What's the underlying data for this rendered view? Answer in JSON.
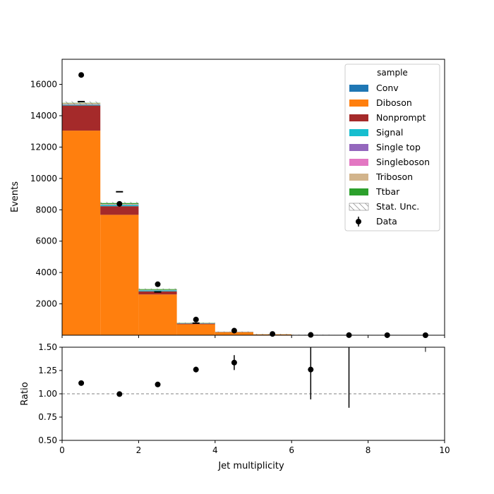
{
  "chart_data": {
    "type": "bar",
    "stacked": true,
    "x_bins": [
      0,
      1,
      2,
      3,
      4,
      5,
      6,
      7,
      8,
      9,
      10
    ],
    "series": [
      {
        "name": "Conv",
        "color": "#1f77b4",
        "values": [
          0,
          0,
          0,
          0,
          0,
          0,
          0,
          0,
          0,
          0
        ]
      },
      {
        "name": "Diboson",
        "color": "#ff7f0e",
        "values": [
          13050,
          7680,
          2600,
          700,
          190,
          55,
          15,
          3,
          1,
          0
        ]
      },
      {
        "name": "Nonprompt",
        "color": "#a52a2a",
        "values": [
          1600,
          550,
          200,
          40,
          12,
          3,
          1,
          0,
          0,
          0
        ]
      },
      {
        "name": "Signal",
        "color": "#17becf",
        "values": [
          50,
          80,
          60,
          20,
          6,
          2,
          0,
          0,
          0,
          0
        ]
      },
      {
        "name": "Single top",
        "color": "#9467bd",
        "values": [
          10,
          10,
          10,
          5,
          2,
          0,
          0,
          0,
          0,
          0
        ]
      },
      {
        "name": "Singleboson",
        "color": "#e377c2",
        "values": [
          20,
          10,
          5,
          2,
          0,
          0,
          0,
          0,
          0,
          0
        ]
      },
      {
        "name": "Triboson",
        "color": "#d2b48c",
        "values": [
          70,
          40,
          20,
          8,
          3,
          1,
          0,
          0,
          0,
          0
        ]
      },
      {
        "name": "Ttbar",
        "color": "#2ca02c",
        "values": [
          20,
          60,
          45,
          15,
          5,
          2,
          0,
          0,
          0,
          0
        ]
      }
    ],
    "stat_unc_label": "Stat. Unc.",
    "data": {
      "name": "Data",
      "x": [
        0.5,
        1.5,
        2.5,
        3.5,
        4.5,
        5.5,
        6.5,
        7.5,
        8.5,
        9.5
      ],
      "y": [
        16600,
        8380,
        3250,
        1000,
        290,
        80,
        20,
        3,
        1,
        0
      ],
      "yerr": [
        129,
        92,
        57,
        32,
        17,
        9,
        4.5,
        1.7,
        1,
        0
      ]
    },
    "markers": {
      "x": [
        0.5,
        1.5,
        2.5,
        3.5
      ],
      "y": [
        14900,
        9150,
        2760,
        770
      ]
    },
    "ratio": {
      "x": [
        0.5,
        1.5,
        2.5,
        3.5,
        4.5,
        6.5,
        7.5
      ],
      "y": [
        1.115,
        0.997,
        1.1,
        1.26,
        1.335,
        1.26,
        1.5
      ],
      "yerr": [
        0.012,
        0.011,
        0.02,
        0.03,
        0.08,
        0.32,
        0.65
      ],
      "show_point": [
        true,
        true,
        true,
        true,
        true,
        true,
        false
      ],
      "reference": 1.0
    },
    "extra_ratio_tick": {
      "x": 9.5,
      "y_low": 1.45,
      "y_high": 1.5
    },
    "legend_title": "sample",
    "legend_position": "top-right",
    "xlabel": "Jet multiplicity",
    "ylabel_main": "Events",
    "ylabel_ratio": "Ratio",
    "xlim": [
      0,
      10
    ],
    "ylim_main": [
      0,
      17600
    ],
    "ylim_ratio": [
      0.5,
      1.5
    ],
    "xticks": [
      0,
      2,
      4,
      6,
      8,
      10
    ],
    "yticks_main": [
      2000,
      4000,
      6000,
      8000,
      10000,
      12000,
      14000,
      16000
    ],
    "yticks_ratio": [
      0.5,
      0.75,
      1.0,
      1.25,
      1.5
    ],
    "yticks_ratio_labels": [
      "0.50",
      "0.75",
      "1.00",
      "1.25",
      "1.50"
    ]
  }
}
